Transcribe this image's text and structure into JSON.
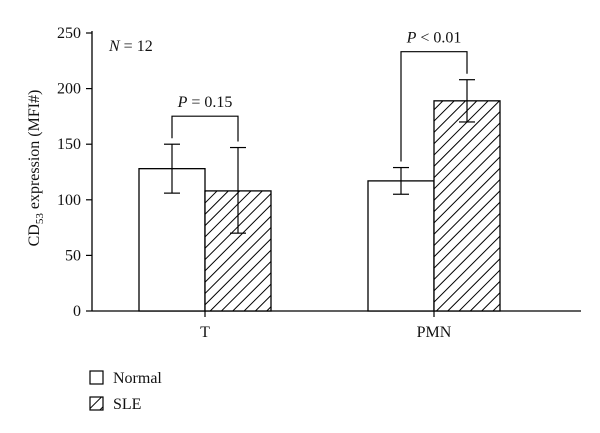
{
  "chart_data": {
    "type": "bar",
    "categories": [
      "T",
      "PMN"
    ],
    "series": [
      {
        "name": "Normal",
        "pattern": "open",
        "values": [
          128,
          117
        ],
        "error_low": [
          106,
          105
        ],
        "error_high": [
          150,
          129
        ]
      },
      {
        "name": "SLE",
        "pattern": "hatched",
        "values": [
          108,
          189
        ],
        "error_low": [
          70,
          170
        ],
        "error_high": [
          147,
          208
        ]
      }
    ],
    "ylabel_prefix": "CD",
    "ylabel_sub": "53",
    "ylabel_suffix": " expression (MFI#)",
    "ylim": [
      0,
      250
    ],
    "yticks": [
      "0",
      "50",
      "100",
      "150",
      "200",
      "250"
    ],
    "grid": false,
    "legend_position": "bottom-left",
    "annotations": {
      "n_label_italic": "N",
      "n_label_rest": " = 12",
      "comparisons": [
        {
          "category": "T",
          "p_italic": "P",
          "p_rest": " = 0.15"
        },
        {
          "category": "PMN",
          "p_italic": "P",
          "p_rest": " < 0.01"
        }
      ]
    }
  },
  "colors": {
    "axis": "#000000",
    "bar_fill": "#ffffff",
    "hatch": "#000000"
  }
}
